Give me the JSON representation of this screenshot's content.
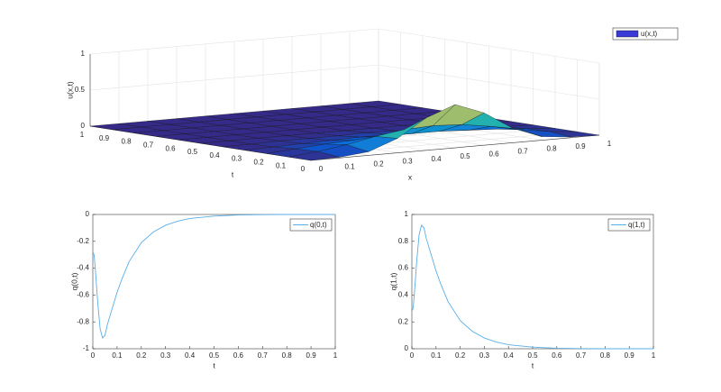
{
  "chart_data": [
    {
      "type": "surface",
      "x": [
        0,
        0.1,
        0.2,
        0.3,
        0.4,
        0.5,
        0.6,
        0.7,
        0.8,
        0.9,
        1
      ],
      "y": [
        0,
        0.1,
        0.2,
        0.3,
        0.4,
        0.5,
        0.6,
        0.7,
        0.8,
        0.9,
        1
      ],
      "z": [
        [
          0,
          0.01,
          0.05,
          0.2,
          0.45,
          0.6,
          0.45,
          0.2,
          0.05,
          0.01,
          0
        ],
        [
          0,
          0.04,
          0.1,
          0.18,
          0.24,
          0.26,
          0.24,
          0.18,
          0.1,
          0.04,
          0
        ],
        [
          0,
          0.03,
          0.06,
          0.08,
          0.1,
          0.1,
          0.1,
          0.08,
          0.06,
          0.03,
          0
        ],
        [
          0,
          0.01,
          0.02,
          0.03,
          0.04,
          0.04,
          0.04,
          0.03,
          0.02,
          0.01,
          0
        ],
        [
          0,
          0,
          0.01,
          0.01,
          0.01,
          0.02,
          0.01,
          0.01,
          0.01,
          0,
          0
        ],
        [
          0,
          0,
          0,
          0,
          0,
          0,
          0,
          0,
          0,
          0,
          0
        ],
        [
          0,
          0,
          0,
          0,
          0,
          0,
          0,
          0,
          0,
          0,
          0
        ],
        [
          0,
          0,
          0,
          0,
          0,
          0,
          0,
          0,
          0,
          0,
          0
        ],
        [
          0,
          0,
          0,
          0,
          0,
          0,
          0,
          0,
          0,
          0,
          0
        ],
        [
          0,
          0,
          0,
          0,
          0,
          0,
          0,
          0,
          0,
          0,
          0
        ],
        [
          0,
          0,
          0,
          0,
          0,
          0,
          0,
          0,
          0,
          0,
          0
        ]
      ],
      "xlim": [
        0,
        1
      ],
      "ylim": [
        0,
        1
      ],
      "zlim": [
        0,
        1
      ],
      "xticks": [
        0,
        0.1,
        0.2,
        0.3,
        0.4,
        0.5,
        0.6,
        0.7,
        0.8,
        0.9,
        1
      ],
      "yticks": [
        0,
        0.1,
        0.2,
        0.3,
        0.4,
        0.5,
        0.6,
        0.7,
        0.8,
        0.9,
        1
      ],
      "zticks": [
        0,
        0.5,
        1
      ],
      "xlabel": "x",
      "ylabel": "t",
      "zlabel": "u(x,t)",
      "legend_name": "u(x,t)",
      "legend_color": "#3a3ad6",
      "colormap": [
        "#352a87",
        "#0363e1",
        "#1485d4",
        "#06a7c6",
        "#38b99e",
        "#92bf73",
        "#d9ba56",
        "#fcce2e",
        "#f9fb0e"
      ],
      "grid": true
    },
    {
      "type": "line",
      "x": [
        0,
        0.005,
        0.01,
        0.02,
        0.03,
        0.04,
        0.05,
        0.06,
        0.08,
        0.1,
        0.12,
        0.15,
        0.2,
        0.25,
        0.3,
        0.35,
        0.4,
        0.5,
        0.6,
        0.7,
        0.8,
        0.9,
        1
      ],
      "series": [
        {
          "name": "q(0,t)",
          "color": "#5aaee6",
          "values": [
            -0.28,
            -0.3,
            -0.4,
            -0.65,
            -0.85,
            -0.92,
            -0.9,
            -0.82,
            -0.7,
            -0.58,
            -0.48,
            -0.35,
            -0.21,
            -0.13,
            -0.08,
            -0.05,
            -0.03,
            -0.012,
            -0.004,
            -0.001,
            0,
            0,
            0
          ]
        }
      ],
      "xlim": [
        0,
        1
      ],
      "ylim": [
        -1,
        0
      ],
      "xticks": [
        0,
        0.1,
        0.2,
        0.3,
        0.4,
        0.5,
        0.6,
        0.7,
        0.8,
        0.9,
        1
      ],
      "yticks": [
        -1,
        -0.8,
        -0.6,
        -0.4,
        -0.2,
        0
      ],
      "xlabel": "t",
      "ylabel": "q(0,t)",
      "legend": "upper right"
    },
    {
      "type": "line",
      "x": [
        0,
        0.005,
        0.01,
        0.02,
        0.03,
        0.04,
        0.05,
        0.06,
        0.08,
        0.1,
        0.12,
        0.15,
        0.2,
        0.25,
        0.3,
        0.35,
        0.4,
        0.5,
        0.6,
        0.7,
        0.8,
        0.9,
        1
      ],
      "series": [
        {
          "name": "q(1,t)",
          "color": "#5aaee6",
          "values": [
            0.28,
            0.3,
            0.4,
            0.65,
            0.85,
            0.92,
            0.9,
            0.82,
            0.7,
            0.58,
            0.48,
            0.35,
            0.21,
            0.13,
            0.08,
            0.05,
            0.03,
            0.012,
            0.004,
            0.001,
            0,
            0,
            0
          ]
        }
      ],
      "xlim": [
        0,
        1
      ],
      "ylim": [
        0,
        1
      ],
      "xticks": [
        0,
        0.1,
        0.2,
        0.3,
        0.4,
        0.5,
        0.6,
        0.7,
        0.8,
        0.9,
        1
      ],
      "yticks": [
        0,
        0.2,
        0.4,
        0.6,
        0.8,
        1
      ],
      "xlabel": "t",
      "ylabel": "q(1,t)",
      "legend": "upper right"
    }
  ]
}
